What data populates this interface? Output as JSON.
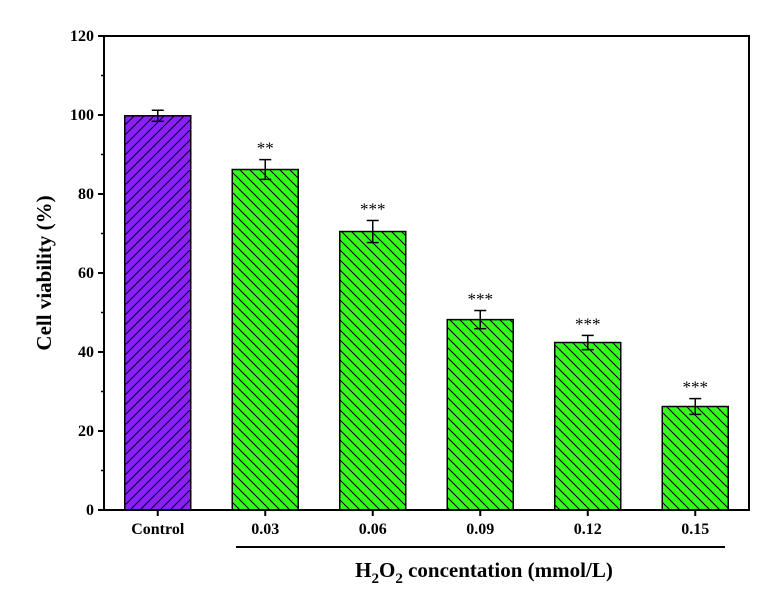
{
  "chart_data": {
    "type": "bar",
    "categories": [
      "Control",
      "0.03",
      "0.06",
      "0.09",
      "0.12",
      "0.15"
    ],
    "values": [
      99.8,
      86.2,
      70.5,
      48.2,
      42.4,
      26.2
    ],
    "errors": [
      1.4,
      2.5,
      2.8,
      2.3,
      1.8,
      2.0
    ],
    "significance": [
      "",
      "**",
      "***",
      "***",
      "***",
      "***"
    ],
    "ylabel": "Cell viability (%)",
    "xlabel": {
      "main": "H",
      "sub1": "2",
      "mid": "O",
      "sub2": "2",
      "rest": " concentation (mmol/L)"
    },
    "ylim": [
      0,
      120
    ],
    "yticks": [
      0,
      20,
      40,
      60,
      80,
      100,
      120
    ],
    "colors": {
      "control": "#8b1fff",
      "treated": "#33ff1f",
      "hatch": "#000000"
    },
    "grid": false
  }
}
